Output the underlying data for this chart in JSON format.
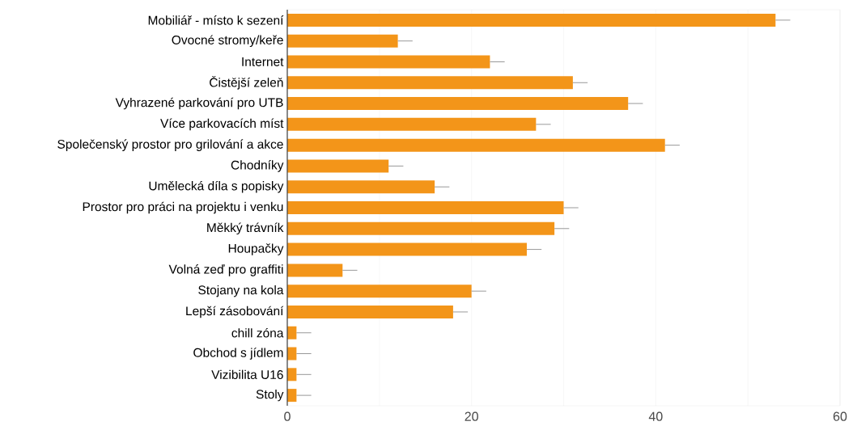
{
  "chart_data": {
    "type": "bar",
    "orientation": "horizontal",
    "categories": [
      "Mobiliář - místo k sezení",
      "Ovocné stromy/keře",
      "Internet",
      "Čistější zeleň",
      "Vyhrazené parkování pro UTB",
      "Více parkovacích míst",
      "Společenský prostor pro grilování a akce",
      "Chodníky",
      "Umělecká díla s popisky",
      "Prostor pro práci na projektu i venku",
      "Měkký trávník",
      "Houpačky",
      "Volná zeď pro graffiti",
      "Stojany na kola",
      "Lepší zásobování",
      "chill zóna",
      "Obchod s jídlem",
      "Vizibilita U16",
      "Stoly"
    ],
    "values": [
      53,
      12,
      22,
      31,
      37,
      27,
      41,
      11,
      16,
      30,
      29,
      26,
      6,
      20,
      18,
      1,
      1,
      1,
      1
    ],
    "errors": [
      [
        53,
        54.6
      ],
      [
        12,
        13.6
      ],
      [
        22,
        23.6
      ],
      [
        31,
        32.6
      ],
      [
        37,
        38.6
      ],
      [
        27,
        28.6
      ],
      [
        41,
        42.6
      ],
      [
        11,
        12.6
      ],
      [
        16,
        17.6
      ],
      [
        30,
        31.6
      ],
      [
        29,
        30.6
      ],
      [
        26,
        27.6
      ],
      [
        6,
        7.6
      ],
      [
        20,
        21.6
      ],
      [
        18,
        19.6
      ],
      [
        1,
        2.6
      ],
      [
        1,
        2.6
      ],
      [
        1,
        2.6
      ],
      [
        1,
        2.6
      ]
    ],
    "color": "#f39519",
    "xlim": [
      0,
      60
    ],
    "xticks": [
      0,
      {
        "value": 10,
        "label": null
      },
      20,
      {
        "value": 30,
        "label": null
      },
      40,
      {
        "value": 50,
        "label": null
      },
      60
    ],
    "grid": "x"
  }
}
